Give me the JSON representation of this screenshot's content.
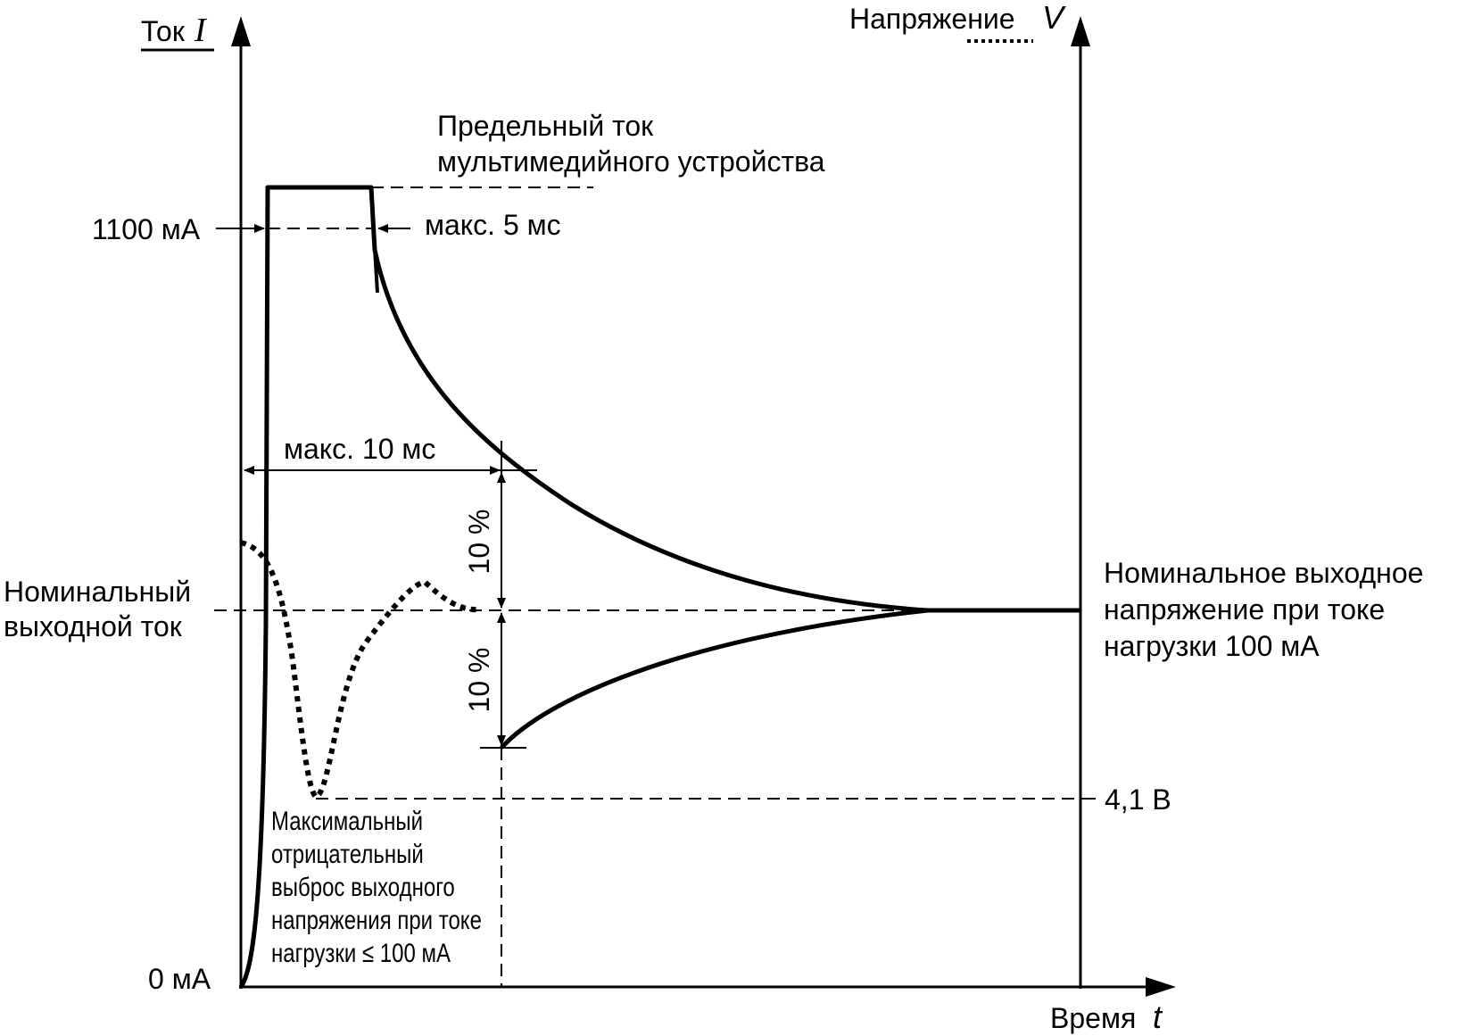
{
  "axes": {
    "current_label": "Ток",
    "current_symbol": "I",
    "voltage_label": "Напряжение",
    "voltage_symbol": "V",
    "time_label": "Время",
    "time_symbol": "t"
  },
  "levels": {
    "current_max": "1100 мА",
    "current_zero": "0 мА",
    "voltage_min": "4,1 В"
  },
  "annotations": {
    "limit_current_line1": "Предельный ток",
    "limit_current_line2": "мультимедийного устройства",
    "max_5ms": "макс. 5 мс",
    "max_10ms": "макс. 10 мс",
    "ten_percent_upper": "10 %",
    "ten_percent_lower": "10 %",
    "nominal_current_line1": "Номинальный",
    "nominal_current_line2": "выходной ток",
    "nominal_voltage_line1": "Номинальное выходное",
    "nominal_voltage_line2": "напряжение при токе",
    "nominal_voltage_line3": "нагрузки 100 мА",
    "undershoot_line1": "Максимальный",
    "undershoot_line2": "отрицательный",
    "undershoot_line3": "выброс выходного",
    "undershoot_line4": "напряжения при токе",
    "undershoot_line5": "нагрузки ≤ 100 мА"
  }
}
